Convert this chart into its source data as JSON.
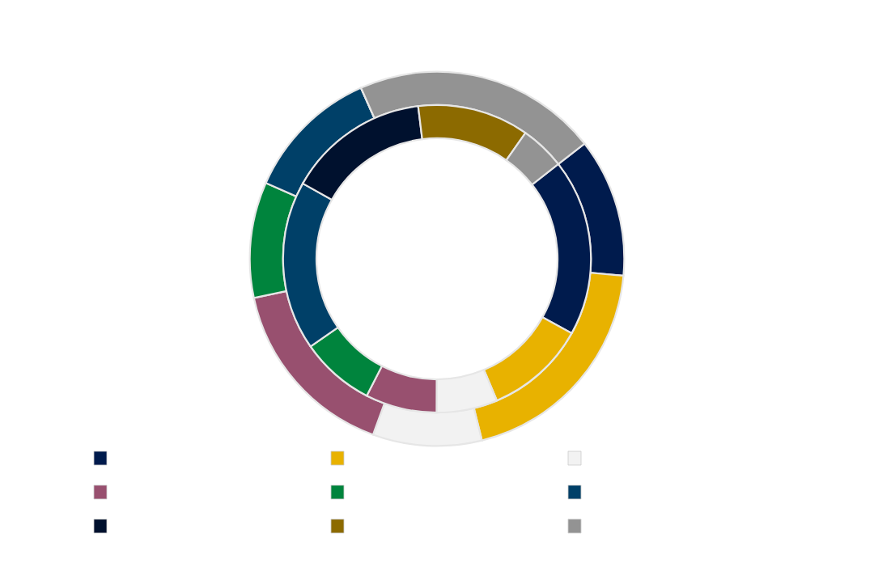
{
  "chart_data": {
    "type": "donut",
    "categories": [
      null,
      null,
      null,
      null,
      null,
      null,
      null,
      null,
      null
    ],
    "colors": [
      "#001b4d",
      "#e8b200",
      "#f2f2f2",
      "#98506f",
      "#00843d",
      "#004068",
      "#00112e",
      "#8c6a00",
      "#939393"
    ],
    "series": [
      {
        "values": [
          12,
          19.7,
          9.4,
          16.1,
          10,
          11.7,
          0,
          0,
          21.1
        ]
      },
      {
        "values": [
          18.6,
          10.6,
          6.4,
          7.5,
          7.8,
          17.8,
          14.9,
          11.7,
          4.7
        ]
      }
    ]
  }
}
